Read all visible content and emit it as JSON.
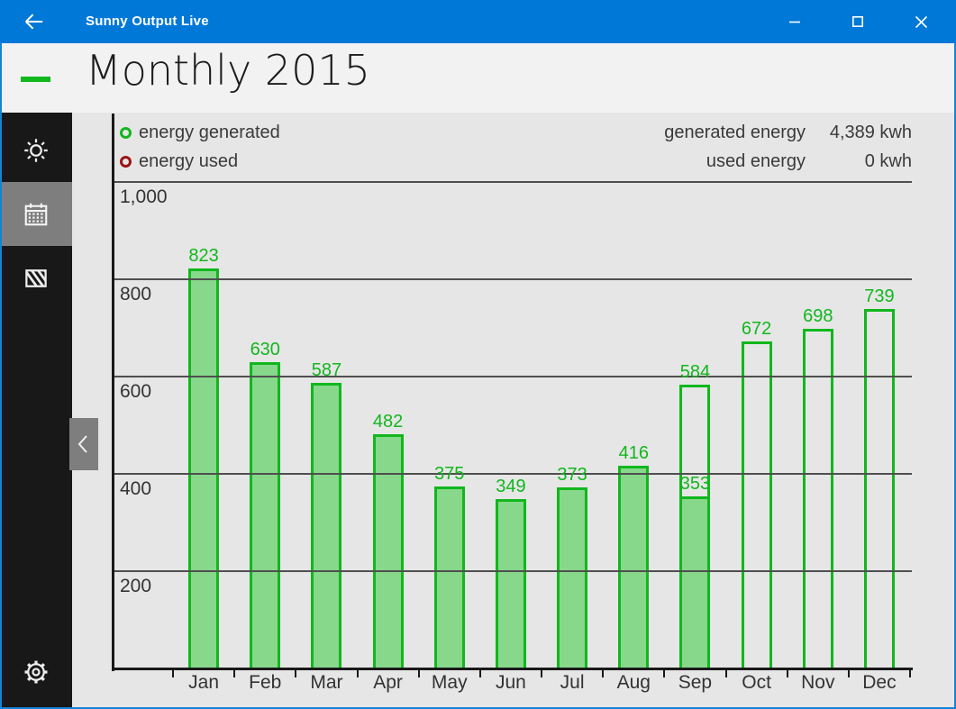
{
  "window": {
    "title": "Sunny Output Live"
  },
  "header": {
    "title": "Monthly 2015"
  },
  "sidebar": {
    "items": [
      {
        "id": "sun",
        "icon": "sun-icon",
        "selected": false
      },
      {
        "id": "calendar",
        "icon": "calendar-icon",
        "selected": true
      },
      {
        "id": "panel",
        "icon": "solar-panel-icon",
        "selected": false
      }
    ]
  },
  "legend": {
    "series": [
      {
        "label": "energy generated",
        "color": "#11b71d"
      },
      {
        "label": "energy used",
        "color": "#9e1313"
      }
    ],
    "totals": [
      {
        "label": "generated energy",
        "value": "4,389 kwh"
      },
      {
        "label": "used energy",
        "value": "0 kwh"
      }
    ]
  },
  "chart_data": {
    "type": "bar",
    "title": "Monthly 2015",
    "unit": "kwh",
    "categories": [
      "Jan",
      "Feb",
      "Mar",
      "Apr",
      "May",
      "Jun",
      "Jul",
      "Aug",
      "Sep",
      "Oct",
      "Nov",
      "Dec"
    ],
    "series": [
      {
        "name": "energy generated (measured, filled bars)",
        "style": "filled",
        "color": "#11b71d",
        "fill": "#87d88b",
        "values": [
          823,
          630,
          587,
          482,
          375,
          349,
          373,
          416,
          353,
          null,
          null,
          null
        ]
      },
      {
        "name": "energy generated (outline bars)",
        "style": "outline",
        "color": "#11b71d",
        "values": [
          null,
          null,
          null,
          null,
          null,
          null,
          null,
          null,
          584,
          672,
          698,
          739
        ]
      }
    ],
    "ylim": [
      0,
      1000
    ],
    "ytick_values": [
      1000,
      800,
      600,
      400,
      200
    ],
    "ytick_labels": [
      "1,000",
      "800",
      "600",
      "400",
      "200"
    ],
    "grid": true,
    "legend_position": "top"
  },
  "colors": {
    "accent": "#0078d7",
    "bar_stroke": "#11b71d",
    "bar_fill": "#87d88b",
    "used_red": "#9e1313",
    "sidebar_selected": "#7e7e7e",
    "window_border": "#1283d8"
  }
}
